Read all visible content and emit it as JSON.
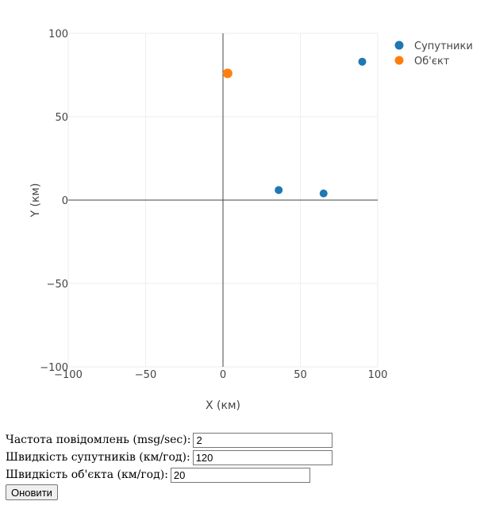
{
  "chart_data": {
    "type": "scatter",
    "xlabel": "X (км)",
    "ylabel": "Y (км)",
    "xlim": [
      -100,
      100
    ],
    "ylim": [
      -100,
      100
    ],
    "xticks": [
      -100,
      -50,
      0,
      50,
      100
    ],
    "yticks": [
      -100,
      -50,
      0,
      50,
      100
    ],
    "tick_labels_x": [
      "−100",
      "−50",
      "0",
      "50",
      "100"
    ],
    "tick_labels_y": [
      "−100",
      "−50",
      "0",
      "50",
      "100"
    ],
    "grid": true,
    "legend_position": "top-right",
    "series": [
      {
        "name": "Супутники",
        "color": "#1f77b4",
        "points": [
          {
            "x": 36,
            "y": 6
          },
          {
            "x": 65,
            "y": 4
          },
          {
            "x": 90,
            "y": 83
          }
        ]
      },
      {
        "name": "Об'єкт",
        "color": "#ff7f0e",
        "points": [
          {
            "x": 3,
            "y": 76
          }
        ]
      }
    ]
  },
  "controls": {
    "frequency_label": "Частота повідомлень (msg/sec):",
    "frequency_value": "2",
    "sat_speed_label": "Швидкість супутників (км/год):",
    "sat_speed_value": "120",
    "obj_speed_label": "Швидкість об'єкта (км/год):",
    "obj_speed_value": "20",
    "update_label": "Оновити"
  }
}
